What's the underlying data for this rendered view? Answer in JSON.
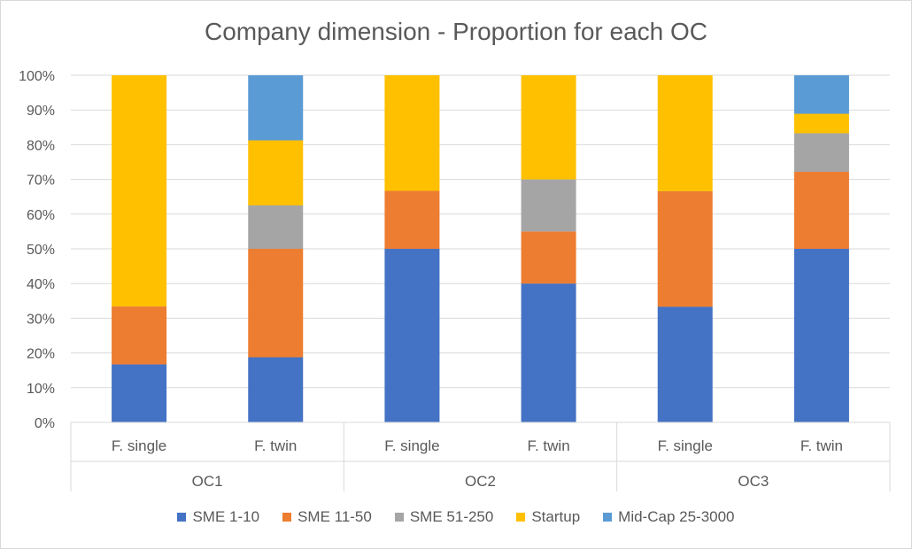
{
  "chart_data": {
    "type": "bar",
    "stacked": true,
    "title": "Company dimension - Proportion for each OC",
    "groups": [
      "OC1",
      "OC2",
      "OC3"
    ],
    "categories": [
      "F. single",
      "F. twin",
      "F. single",
      "F. twin",
      "F. single",
      "F. twin"
    ],
    "ylim": [
      0,
      100
    ],
    "yticks": [
      "0%",
      "10%",
      "20%",
      "30%",
      "40%",
      "50%",
      "60%",
      "70%",
      "80%",
      "90%",
      "100%"
    ],
    "grid": true,
    "legend_position": "bottom",
    "series": [
      {
        "name": "SME 1-10",
        "color": "#4472c4",
        "values": [
          16.7,
          18.75,
          50,
          40,
          33.3,
          50
        ]
      },
      {
        "name": "SME 11-50",
        "color": "#ed7d31",
        "values": [
          16.7,
          31.25,
          16.7,
          15,
          33.3,
          22.2
        ]
      },
      {
        "name": "SME 51-250",
        "color": "#a5a5a5",
        "values": [
          0,
          12.5,
          0,
          15,
          0,
          11.1
        ]
      },
      {
        "name": "Startup",
        "color": "#ffc000",
        "values": [
          66.6,
          18.75,
          33.3,
          30,
          33.4,
          5.6
        ]
      },
      {
        "name": "Mid-Cap 25-3000",
        "color": "#5b9bd5",
        "values": [
          0,
          18.75,
          0,
          0,
          0,
          11.1
        ]
      }
    ]
  }
}
